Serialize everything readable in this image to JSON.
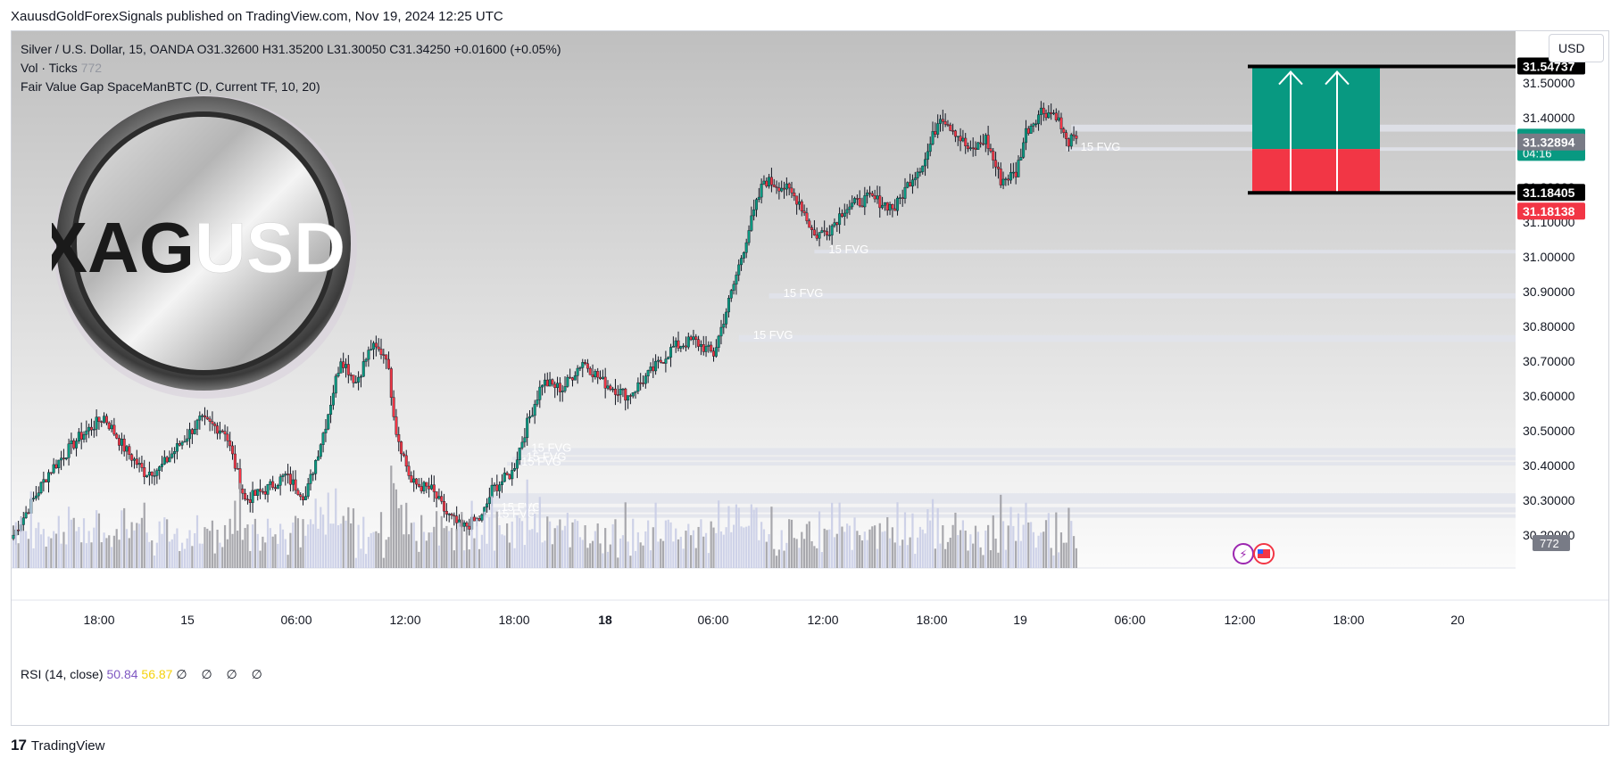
{
  "publish_line": "XauusdGoldForexSignals published on TradingView.com, Nov 19, 2024 12:25 UTC",
  "legend": {
    "symbol": "Silver / U.S. Dollar, 15, OANDA",
    "ohlc": "O31.32600  H31.35200  L31.30050  C31.34250  +0.01600 (+0.05%)",
    "volume_label": "Vol · Ticks",
    "volume_value": "772",
    "indicator": "Fair Value Gap SpaceManBTC (D, Current TF, 10, 20)"
  },
  "currency_button": "USD",
  "logo": {
    "text_dark": "XAG",
    "text_light": "USD"
  },
  "rsi": {
    "label": "RSI (14, close)",
    "value1": "50.84",
    "value2": "56.87",
    "placeholders": "∅ ∅ ∅ ∅"
  },
  "footer": {
    "brand": "TradingView",
    "logo_mark": "17"
  },
  "colors": {
    "up": "#089981",
    "down": "#f23645",
    "volume": "#b2b5be",
    "fvg": "#e0e3eb",
    "profit": "#089981",
    "loss": "#f23645",
    "price_tag_current": "#089981",
    "price_tag_grey": "#787b86"
  },
  "chart_data": {
    "type": "candlestick",
    "symbol": "XAGUSD",
    "timeframe": "15",
    "ylim": [
      30.12,
      31.66
    ],
    "y_ticks": [
      "31.50000",
      "31.40000",
      "31.30000",
      "31.20000",
      "31.10000",
      "31.00000",
      "30.90000",
      "30.80000",
      "30.70000",
      "30.60000",
      "30.50000",
      "30.40000",
      "30.30000",
      "30.20000"
    ],
    "x_ticks": [
      "18:00",
      "15",
      "06:00",
      "12:00",
      "18:00",
      "18",
      "06:00",
      "12:00",
      "18:00",
      "19",
      "06:00",
      "12:00",
      "18:00",
      "20"
    ],
    "x_tick_bold": [
      "18"
    ],
    "close_path": [
      {
        "t": 0,
        "p": 30.2
      },
      {
        "t": 14,
        "p": 30.38
      },
      {
        "t": 26,
        "p": 30.48
      },
      {
        "t": 36,
        "p": 30.54
      },
      {
        "t": 44,
        "p": 30.45
      },
      {
        "t": 52,
        "p": 30.38
      },
      {
        "t": 58,
        "p": 30.39
      },
      {
        "t": 66,
        "p": 30.46
      },
      {
        "t": 74,
        "p": 30.53
      },
      {
        "t": 84,
        "p": 30.5
      },
      {
        "t": 92,
        "p": 30.3
      },
      {
        "t": 100,
        "p": 30.33
      },
      {
        "t": 108,
        "p": 30.37
      },
      {
        "t": 116,
        "p": 30.31
      },
      {
        "t": 124,
        "p": 30.52
      },
      {
        "t": 130,
        "p": 30.71
      },
      {
        "t": 136,
        "p": 30.64
      },
      {
        "t": 142,
        "p": 30.74
      },
      {
        "t": 148,
        "p": 30.72
      },
      {
        "t": 152,
        "p": 30.5
      },
      {
        "t": 158,
        "p": 30.35
      },
      {
        "t": 166,
        "p": 30.33
      },
      {
        "t": 172,
        "p": 30.26
      },
      {
        "t": 178,
        "p": 30.22
      },
      {
        "t": 186,
        "p": 30.25
      },
      {
        "t": 190,
        "p": 30.33
      },
      {
        "t": 198,
        "p": 30.38
      },
      {
        "t": 204,
        "p": 30.52
      },
      {
        "t": 210,
        "p": 30.64
      },
      {
        "t": 218,
        "p": 30.62
      },
      {
        "t": 226,
        "p": 30.7
      },
      {
        "t": 234,
        "p": 30.64
      },
      {
        "t": 244,
        "p": 30.6
      },
      {
        "t": 252,
        "p": 30.66
      },
      {
        "t": 262,
        "p": 30.74
      },
      {
        "t": 270,
        "p": 30.76
      },
      {
        "t": 278,
        "p": 30.72
      },
      {
        "t": 282,
        "p": 30.82
      },
      {
        "t": 286,
        "p": 30.92
      },
      {
        "t": 292,
        "p": 31.08
      },
      {
        "t": 298,
        "p": 31.22
      },
      {
        "t": 306,
        "p": 31.2
      },
      {
        "t": 312,
        "p": 31.16
      },
      {
        "t": 318,
        "p": 31.06
      },
      {
        "t": 324,
        "p": 31.08
      },
      {
        "t": 330,
        "p": 31.14
      },
      {
        "t": 340,
        "p": 31.17
      },
      {
        "t": 350,
        "p": 31.14
      },
      {
        "t": 356,
        "p": 31.22
      },
      {
        "t": 362,
        "p": 31.28
      },
      {
        "t": 368,
        "p": 31.41
      },
      {
        "t": 374,
        "p": 31.36
      },
      {
        "t": 380,
        "p": 31.3
      },
      {
        "t": 386,
        "p": 31.34
      },
      {
        "t": 392,
        "p": 31.22
      },
      {
        "t": 398,
        "p": 31.24
      },
      {
        "t": 402,
        "p": 31.36
      },
      {
        "t": 408,
        "p": 31.42
      },
      {
        "t": 414,
        "p": 31.41
      },
      {
        "t": 418,
        "p": 31.33
      },
      {
        "t": 422,
        "p": 31.34
      }
    ],
    "current_price": "31.34250",
    "countdown": "04:16",
    "price_labels": {
      "target": "31.54737",
      "grey": "31.32894",
      "stop": "31.18405",
      "red": "31.18138",
      "volume": "772"
    },
    "fvg_zones": [
      {
        "low": 31.36,
        "high": 31.38,
        "label": "",
        "start_t": 420
      },
      {
        "low": 31.305,
        "high": 31.315,
        "label": "15 FVG",
        "start_t": 418
      },
      {
        "low": 31.01,
        "high": 31.02,
        "label": "15 FVG",
        "start_t": 318
      },
      {
        "low": 30.88,
        "high": 30.895,
        "label": "15 FVG",
        "start_t": 300
      },
      {
        "low": 30.755,
        "high": 30.775,
        "label": "15 FVG",
        "start_t": 288
      },
      {
        "low": 30.43,
        "high": 30.45,
        "label": "15 FVG",
        "start_t": 200
      },
      {
        "low": 30.415,
        "high": 30.425,
        "label": "15 FVG",
        "start_t": 198
      },
      {
        "low": 30.4,
        "high": 30.41,
        "label": "15 FVG",
        "start_t": 196
      },
      {
        "low": 30.29,
        "high": 30.32,
        "label": "",
        "start_t": 190
      },
      {
        "low": 30.265,
        "high": 30.28,
        "label": "15 FVG",
        "start_t": 188
      },
      {
        "low": 30.25,
        "high": 30.26,
        "label": "15 FVG",
        "start_t": 186
      }
    ],
    "position_tool": {
      "entry": 31.31,
      "target": 31.54737,
      "stop": 31.18405
    }
  }
}
